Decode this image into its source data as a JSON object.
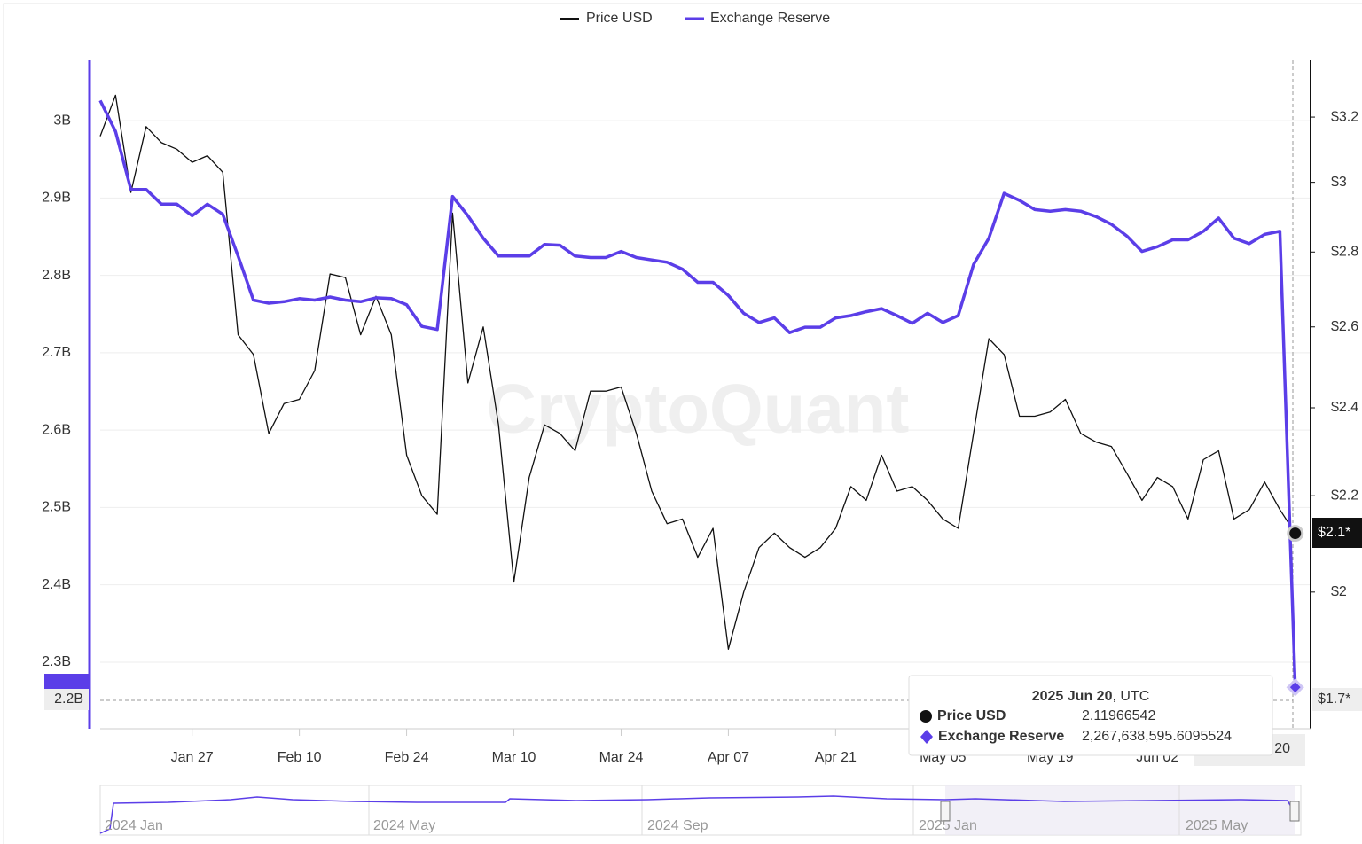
{
  "chart_data": {
    "type": "line",
    "legend_position": "top",
    "watermark": "CryptoQuant",
    "x": [
      "2025-01-15",
      "2025-01-17",
      "2025-01-19",
      "2025-01-21",
      "2025-01-23",
      "2025-01-25",
      "2025-01-27",
      "2025-01-29",
      "2025-01-31",
      "2025-02-02",
      "2025-02-04",
      "2025-02-06",
      "2025-02-08",
      "2025-02-10",
      "2025-02-12",
      "2025-02-14",
      "2025-02-16",
      "2025-02-18",
      "2025-02-20",
      "2025-02-22",
      "2025-02-24",
      "2025-02-26",
      "2025-02-28",
      "2025-03-02",
      "2025-03-04",
      "2025-03-06",
      "2025-03-08",
      "2025-03-10",
      "2025-03-12",
      "2025-03-14",
      "2025-03-16",
      "2025-03-18",
      "2025-03-20",
      "2025-03-22",
      "2025-03-24",
      "2025-03-26",
      "2025-03-28",
      "2025-03-30",
      "2025-04-01",
      "2025-04-03",
      "2025-04-05",
      "2025-04-07",
      "2025-04-09",
      "2025-04-11",
      "2025-04-13",
      "2025-04-15",
      "2025-04-17",
      "2025-04-19",
      "2025-04-21",
      "2025-04-23",
      "2025-04-25",
      "2025-04-27",
      "2025-04-29",
      "2025-05-01",
      "2025-05-03",
      "2025-05-05",
      "2025-05-07",
      "2025-05-09",
      "2025-05-11",
      "2025-05-13",
      "2025-05-15",
      "2025-05-17",
      "2025-05-19",
      "2025-05-21",
      "2025-05-23",
      "2025-05-25",
      "2025-05-27",
      "2025-05-29",
      "2025-05-31",
      "2025-06-02",
      "2025-06-04",
      "2025-06-06",
      "2025-06-08",
      "2025-06-10",
      "2025-06-12",
      "2025-06-14",
      "2025-06-16",
      "2025-06-18",
      "2025-06-20"
    ],
    "xlim": [
      "2025-01-15",
      "2025-06-22"
    ],
    "xticks": [
      {
        "value": "2025-01-27",
        "label": "Jan 27"
      },
      {
        "value": "2025-02-10",
        "label": "Feb 10"
      },
      {
        "value": "2025-02-24",
        "label": "Feb 24"
      },
      {
        "value": "2025-03-10",
        "label": "Mar 10"
      },
      {
        "value": "2025-03-24",
        "label": "Mar 24"
      },
      {
        "value": "2025-04-07",
        "label": "Apr 07"
      },
      {
        "value": "2025-04-21",
        "label": "Apr 21"
      },
      {
        "value": "2025-05-05",
        "label": "May 05"
      },
      {
        "value": "2025-05-19",
        "label": "May 19"
      },
      {
        "value": "2025-06-02",
        "label": "Jun 02"
      }
    ],
    "ylim": [
      2.214,
      3.078
    ],
    "yticks": [
      {
        "value": 2.3,
        "label": "2.3B"
      },
      {
        "value": 2.4,
        "label": "2.4B"
      },
      {
        "value": 2.5,
        "label": "2.5B"
      },
      {
        "value": 2.6,
        "label": "2.6B"
      },
      {
        "value": 2.7,
        "label": "2.7B"
      },
      {
        "value": 2.8,
        "label": "2.8B"
      },
      {
        "value": 2.9,
        "label": "2.9B"
      },
      {
        "value": 3,
        "label": "3B"
      }
    ],
    "y2lim": [
      1.747,
      3.385
    ],
    "y2_log": true,
    "y2ticks": [
      {
        "value": 2,
        "label": "$2"
      },
      {
        "value": 2.2,
        "label": "$2.2"
      },
      {
        "value": 2.4,
        "label": "$2.4"
      },
      {
        "value": 2.6,
        "label": "$2.6"
      },
      {
        "value": 2.8,
        "label": "$2.8"
      },
      {
        "value": 3,
        "label": "$3"
      },
      {
        "value": 3.2,
        "label": "$3.2"
      }
    ],
    "grid": true,
    "series": [
      {
        "name": "Price USD",
        "color": "#111111",
        "axis": "y2",
        "values": [
          3.14,
          3.27,
          2.97,
          3.17,
          3.12,
          3.1,
          3.06,
          3.08,
          3.03,
          2.58,
          2.53,
          2.34,
          2.41,
          2.42,
          2.49,
          2.74,
          2.73,
          2.58,
          2.68,
          2.58,
          2.29,
          2.2,
          2.16,
          2.91,
          2.46,
          2.6,
          2.36,
          2.02,
          2.24,
          2.36,
          2.34,
          2.3,
          2.44,
          2.44,
          2.45,
          2.34,
          2.21,
          2.14,
          2.15,
          2.07,
          2.13,
          1.89,
          2.0,
          2.09,
          2.12,
          2.09,
          2.07,
          2.09,
          2.13,
          2.22,
          2.19,
          2.29,
          2.21,
          2.22,
          2.19,
          2.15,
          2.13,
          2.34,
          2.57,
          2.53,
          2.38,
          2.38,
          2.39,
          2.42,
          2.34,
          2.32,
          2.31,
          2.25,
          2.19,
          2.24,
          2.22,
          2.15,
          2.28,
          2.3,
          2.15,
          2.17,
          2.23,
          2.17,
          2.11966542
        ]
      },
      {
        "name": "Exchange Reserve",
        "color": "#5b3ee8",
        "values": [
          3.026,
          2.986,
          2.911,
          2.911,
          2.892,
          2.892,
          2.877,
          2.892,
          2.879,
          2.825,
          2.768,
          2.764,
          2.766,
          2.77,
          2.768,
          2.772,
          2.768,
          2.766,
          2.771,
          2.77,
          2.762,
          2.734,
          2.73,
          2.902,
          2.877,
          2.848,
          2.825,
          2.825,
          2.825,
          2.84,
          2.839,
          2.825,
          2.823,
          2.823,
          2.831,
          2.823,
          2.82,
          2.817,
          2.808,
          2.791,
          2.791,
          2.774,
          2.751,
          2.739,
          2.745,
          2.726,
          2.733,
          2.733,
          2.745,
          2.748,
          2.753,
          2.757,
          2.748,
          2.738,
          2.751,
          2.739,
          2.748,
          2.814,
          2.848,
          2.906,
          2.897,
          2.885,
          2.883,
          2.885,
          2.883,
          2.876,
          2.866,
          2.851,
          2.831,
          2.837,
          2.846,
          2.846,
          2.857,
          2.874,
          2.848,
          2.841,
          2.853,
          2.857,
          2.2676
        ]
      }
    ],
    "crosshair": {
      "y_label": "2.2B",
      "y2_price_label": "$2.1*",
      "y2_low_label": "$1.7*",
      "x_label": "20"
    },
    "tooltip": {
      "date": "2025 Jun 20",
      "zone": ", UTC",
      "rows": [
        {
          "label": "Price USD",
          "value": "2.11966542"
        },
        {
          "label": "Exchange Reserve",
          "value": "2,267,638,595.6095524"
        }
      ]
    },
    "navigator": {
      "labels": [
        "2024 Jan",
        "2024 May",
        "2024 Sep",
        "2025 Jan",
        "2025 May"
      ]
    }
  }
}
